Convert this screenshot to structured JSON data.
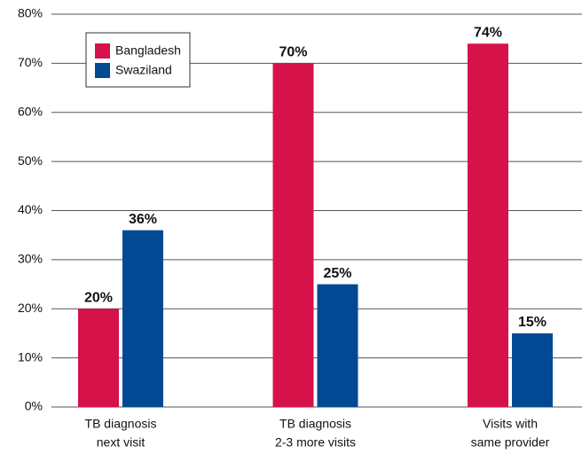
{
  "chart_data": {
    "type": "bar",
    "categories": [
      [
        "TB diagnosis",
        "next visit"
      ],
      [
        "TB diagnosis",
        "2-3 more visits"
      ],
      [
        "Visits with",
        "same provider"
      ]
    ],
    "series": [
      {
        "name": "Bangladesh",
        "color": "#d5124a",
        "values": [
          20,
          70,
          74
        ],
        "value_labels": [
          "20%",
          "70%",
          "74%"
        ]
      },
      {
        "name": "Swaziland",
        "color": "#014a93",
        "values": [
          36,
          25,
          15
        ],
        "value_labels": [
          "36%",
          "25%",
          "15%"
        ]
      }
    ],
    "ylim": [
      0,
      80
    ],
    "yticks": [
      {
        "value": 0,
        "label": "0%"
      },
      {
        "value": 10,
        "label": "10%"
      },
      {
        "value": 20,
        "label": "20%"
      },
      {
        "value": 30,
        "label": "30%"
      },
      {
        "value": 40,
        "label": "40%"
      },
      {
        "value": 50,
        "label": "50%"
      },
      {
        "value": 60,
        "label": "60%"
      },
      {
        "value": 70,
        "label": "70%"
      },
      {
        "value": 80,
        "label": "80%"
      }
    ],
    "grid": true,
    "legend": "upper left"
  }
}
